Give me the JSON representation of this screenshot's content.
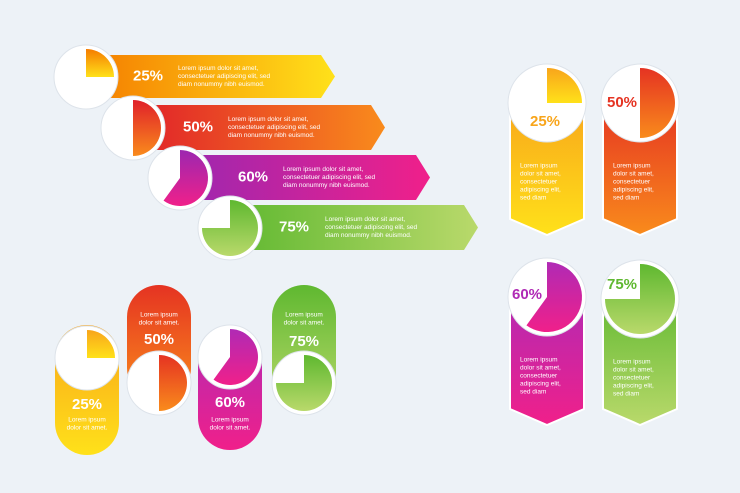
{
  "arrows": {
    "items": [
      {
        "value": 25,
        "label": "25%",
        "colors": [
          "#f57c00",
          "#ffe11a"
        ],
        "lines": [
          "Lorem ipsum dolor sit amet,",
          "consectetuer adipiscing elit, sed",
          "diam nonummy nibh euismod."
        ]
      },
      {
        "value": 50,
        "label": "50%",
        "colors": [
          "#e0202a",
          "#f98b1c"
        ],
        "lines": [
          "Lorem ipsum dolor sit amet,",
          "consectetuer adipiscing elit, sed",
          "diam nonummy nibh euismod."
        ]
      },
      {
        "value": 60,
        "label": "60%",
        "colors": [
          "#9c27b0",
          "#f0208a"
        ],
        "lines": [
          "Lorem ipsum dolor sit amet,",
          "consectetuer adipiscing elit, sed",
          "diam nonummy nibh euismod."
        ]
      },
      {
        "value": 75,
        "label": "75%",
        "colors": [
          "#5fb830",
          "#b9d96b"
        ],
        "lines": [
          "Lorem ipsum dolor sit amet,",
          "consectetuer adipiscing elit, sed",
          "diam nonummy nibh euismod."
        ]
      }
    ]
  },
  "pills": {
    "items": [
      {
        "value": 25,
        "label": "25%",
        "colors": [
          "#f8a51b",
          "#ffe11a"
        ],
        "lines": [
          "Lorem ipsum",
          "dolor sit amet."
        ]
      },
      {
        "value": 50,
        "label": "50%",
        "colors": [
          "#e53322",
          "#f98b1c"
        ],
        "lines": [
          "Lorem ipsum",
          "dolor sit amet."
        ]
      },
      {
        "value": 60,
        "label": "60%",
        "colors": [
          "#b02ab5",
          "#f0208a"
        ],
        "lines": [
          "Lorem ipsum",
          "dolor sit amet."
        ]
      },
      {
        "value": 75,
        "label": "75%",
        "colors": [
          "#5fb830",
          "#b9d96b"
        ],
        "lines": [
          "Lorem ipsum",
          "dolor sit amet."
        ]
      }
    ]
  },
  "cards": {
    "items": [
      {
        "value": 25,
        "label": "25%",
        "colors": [
          "#f8a51b",
          "#ffe11a"
        ],
        "lines": [
          "Lorem ipsum",
          "dolor sit amet,",
          "consectetuer",
          "adipiscing elit,",
          "sed diam"
        ]
      },
      {
        "value": 50,
        "label": "50%",
        "colors": [
          "#e53322",
          "#f98b1c"
        ],
        "lines": [
          "Lorem ipsum",
          "dolor sit amet,",
          "consectetuer",
          "adipiscing elit,",
          "sed diam"
        ]
      },
      {
        "value": 60,
        "label": "60%",
        "colors": [
          "#b02ab5",
          "#f0208a"
        ],
        "lines": [
          "Lorem ipsum",
          "dolor sit amet,",
          "consectetuer",
          "adipiscing elit,",
          "sed diam"
        ]
      },
      {
        "value": 75,
        "label": "75%",
        "colors": [
          "#5fb830",
          "#b9d96b"
        ],
        "lines": [
          "Lorem ipsum",
          "dolor sit amet,",
          "consectetuer",
          "adipiscing elit,",
          "sed diam"
        ]
      }
    ]
  }
}
